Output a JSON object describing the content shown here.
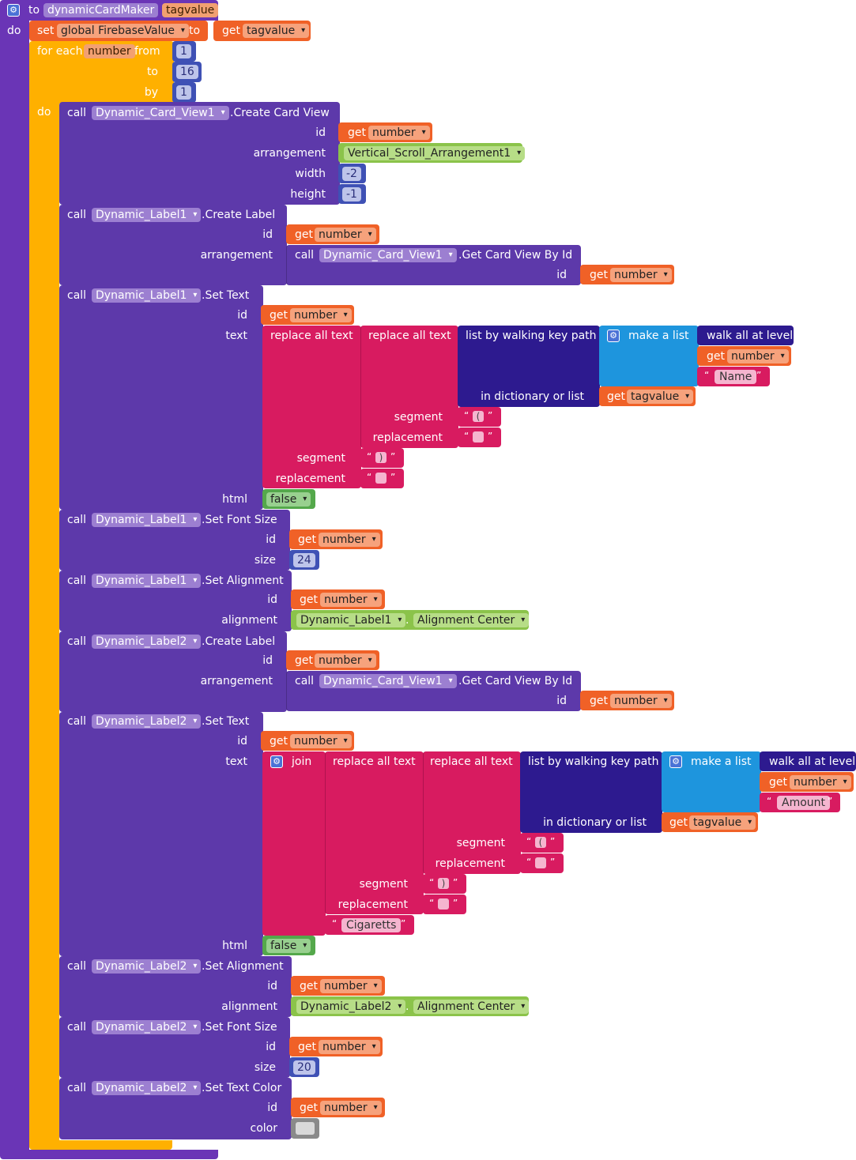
{
  "procedure": {
    "keyword": "to",
    "name": "dynamicCardMaker",
    "param": "tagvalue",
    "do": "do"
  },
  "set_block": {
    "set": "set",
    "var": "global FirebaseValue",
    "to": "to",
    "get": "get",
    "value": "tagvalue"
  },
  "foreach": {
    "label": "for each",
    "var": "number",
    "from": "from",
    "to": "to",
    "by": "by",
    "from_val": "1",
    "to_val": "16",
    "by_val": "1",
    "do": "do"
  },
  "kw": {
    "call": "call",
    "get": "get",
    "number": "number",
    "id": "id",
    "arrangement": "arrangement",
    "width": "width",
    "height": "height",
    "text": "text",
    "html": "html",
    "size": "size",
    "alignment": "alignment",
    "color": "color",
    "segment": "segment",
    "replacement": "replacement",
    "false": "false"
  },
  "components": {
    "card": "Dynamic_Card_View1",
    "label1": "Dynamic_Label1",
    "label2": "Dynamic_Label2",
    "vsa": "Vertical_Scroll_Arrangement1",
    "align_center": "Alignment Center"
  },
  "methods": {
    "create_card_view": ".Create Card View",
    "create_label": ".Create Label",
    "get_card_view": ".Get Card View By Id",
    "set_text": ".Set Text",
    "set_font_size": ".Set Font Size",
    "set_alignment": ".Set Alignment",
    "set_text_color": ".Set Text Color"
  },
  "values": {
    "width": "-2",
    "height": "-1",
    "size1": "24",
    "size2": "20"
  },
  "text_ops": {
    "replace_all": "replace all text",
    "list_by_path": "list by walking key path",
    "in_dict": "in dictionary or list",
    "make_list": "make a list",
    "walk_all": "walk all at level",
    "join": "join"
  },
  "strings": {
    "name": "Name",
    "amount": "Amount",
    "cigarettes": "Cigaretts",
    "open_paren": "(",
    "close_paren": ")"
  },
  "colors": {
    "procedure": "#6a35b6",
    "control": "#ffb000",
    "component": "#5d39aa",
    "variable": "#f06127",
    "math": "#3f51b5",
    "text": "#d81b60",
    "list": "#1e95dd",
    "dict": "#2d1a8f",
    "logic": "#54a84b",
    "vsa": "#8bc34a",
    "colorblock": "#c0c0c0"
  }
}
